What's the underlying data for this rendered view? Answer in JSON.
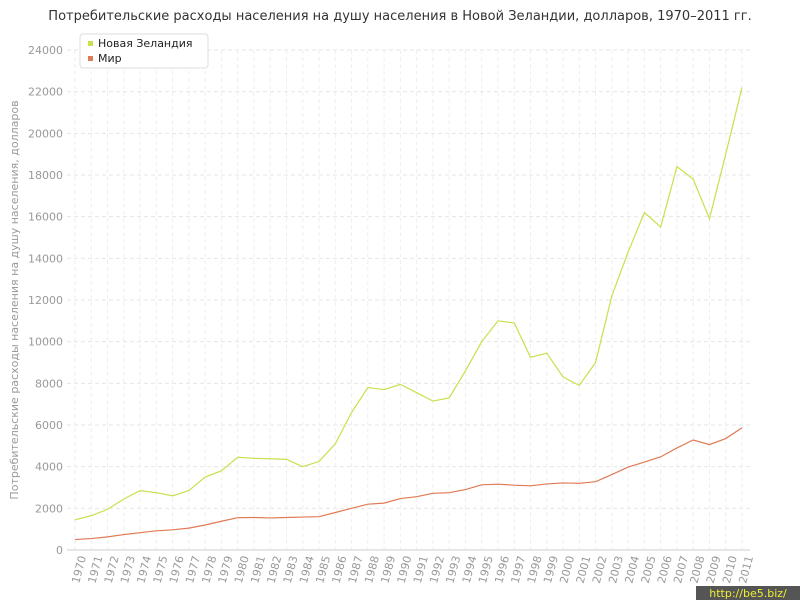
{
  "chart_data": {
    "type": "line",
    "title": "Потребительские расходы населения на душу населения в Новой Зеландии, долларов, 1970–2011 гг.",
    "y_label": "Потребительские расходы населения на душу населения, долларов",
    "watermark": "http://be5.biz/",
    "categories": [
      "1970",
      "1971",
      "1972",
      "1973",
      "1974",
      "1975",
      "1976",
      "1977",
      "1978",
      "1979",
      "1980",
      "1981",
      "1982",
      "1983",
      "1984",
      "1985",
      "1986",
      "1987",
      "1988",
      "1989",
      "1990",
      "1991",
      "1992",
      "1993",
      "1994",
      "1995",
      "1996",
      "1997",
      "1998",
      "1999",
      "2000",
      "2001",
      "2002",
      "2003",
      "2004",
      "2005",
      "2006",
      "2007",
      "2008",
      "2009",
      "2010",
      "2011"
    ],
    "series": [
      {
        "name": "Новая Зеландия",
        "color": "#c8e04c",
        "values": [
          1450,
          1650,
          1950,
          2450,
          2850,
          2750,
          2600,
          2850,
          3500,
          3800,
          4450,
          4400,
          4380,
          4350,
          4000,
          4250,
          5100,
          6600,
          7800,
          7700,
          7950,
          7550,
          7150,
          7300,
          8600,
          10000,
          11000,
          10900,
          9250,
          9450,
          8300,
          7900,
          9000,
          12200,
          14300,
          16200,
          15500,
          18400,
          17800,
          15900,
          19000,
          22200
        ]
      },
      {
        "name": "Мир",
        "color": "#e07a55",
        "values": [
          500,
          550,
          630,
          740,
          830,
          920,
          970,
          1050,
          1200,
          1380,
          1550,
          1560,
          1540,
          1560,
          1580,
          1600,
          1800,
          2000,
          2200,
          2250,
          2470,
          2560,
          2720,
          2750,
          2900,
          3130,
          3160,
          3110,
          3080,
          3170,
          3220,
          3200,
          3280,
          3620,
          3980,
          4220,
          4470,
          4900,
          5280,
          5060,
          5350,
          5870
        ]
      }
    ],
    "ylim": [
      0,
      24000
    ],
    "yticks": [
      0,
      2000,
      4000,
      6000,
      8000,
      10000,
      12000,
      14000,
      16000,
      18000,
      20000,
      22000,
      24000
    ],
    "grid": true,
    "legend": "top-left"
  }
}
